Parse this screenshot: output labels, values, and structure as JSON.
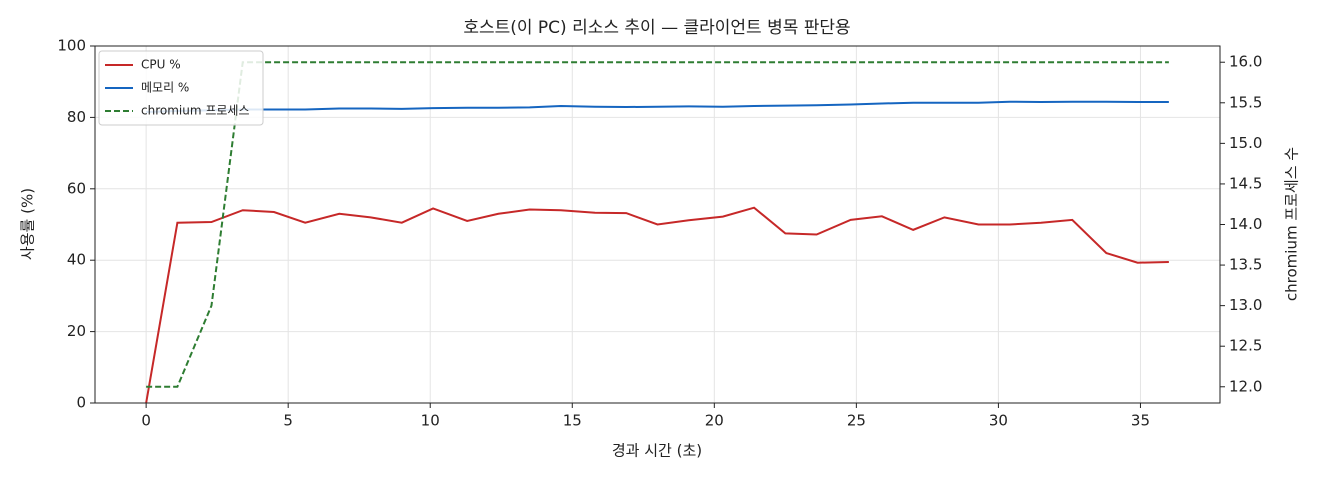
{
  "chart_data": {
    "type": "line",
    "title": "호스트(이 PC) 리소스 추이 — 클라이언트 병목 판단용",
    "x_label": "경과 시간 (초)",
    "y_label": "사용률 (%)",
    "y2_label": "chromium 프로세스 수",
    "x": [
      0,
      1.1,
      2.3,
      3.4,
      4.5,
      5.6,
      6.8,
      7.9,
      9.0,
      10.1,
      11.3,
      12.4,
      13.5,
      14.6,
      15.8,
      16.9,
      18.0,
      19.1,
      20.3,
      21.4,
      22.5,
      23.6,
      24.8,
      25.9,
      27.0,
      28.1,
      29.3,
      30.4,
      31.5,
      32.6,
      33.8,
      34.9,
      36.0
    ],
    "series": [
      {
        "name": "CPU %",
        "color": "#c62828",
        "style": "solid",
        "values": [
          0,
          50.5,
          50.7,
          54,
          53.5,
          50.5,
          53,
          52,
          50.5,
          54.5,
          51,
          53,
          54.2,
          54,
          53.3,
          53.2,
          50,
          51.2,
          52.2,
          54.7,
          47.5,
          47.2,
          51.3,
          52.3,
          48.5,
          52,
          50,
          50,
          50.5,
          51.3,
          42,
          39.3,
          39.5
        ]
      },
      {
        "name": "메모리 %",
        "color": "#1565c0",
        "style": "solid",
        "values": [
          81.5,
          81.8,
          82,
          82.2,
          82.2,
          82.2,
          82.5,
          82.5,
          82.4,
          82.6,
          82.7,
          82.7,
          82.8,
          83.2,
          83,
          82.9,
          83,
          83.1,
          83,
          83.2,
          83.3,
          83.4,
          83.6,
          83.9,
          84.1,
          84.1,
          84.1,
          84.4,
          84.3,
          84.4,
          84.4,
          84.3,
          84.3
        ]
      },
      {
        "name": "chromium 프로세스",
        "color": "#2e7d32",
        "style": "dashed",
        "axis": "y2",
        "values": [
          12,
          12,
          13,
          16,
          16,
          16,
          16,
          16,
          16,
          16,
          16,
          16,
          16,
          16,
          16,
          16,
          16,
          16,
          16,
          16,
          16,
          16,
          16,
          16,
          16,
          16,
          16,
          16,
          16,
          16,
          16,
          16,
          16
        ]
      }
    ],
    "xlim": [
      -1.8,
      37.8
    ],
    "xticks": [
      0,
      5,
      10,
      15,
      20,
      25,
      30,
      35
    ],
    "ylim": [
      0,
      100
    ],
    "yticks": [
      0,
      20,
      40,
      60,
      80,
      100
    ],
    "y2lim": [
      11.8,
      16.2
    ],
    "y2ticks": [
      {
        "value": 12,
        "label": "12.0"
      },
      {
        "value": 12.5,
        "label": "12.5"
      },
      {
        "value": 13,
        "label": "13.0"
      },
      {
        "value": 13.5,
        "label": "13.5"
      },
      {
        "value": 14,
        "label": "14.0"
      },
      {
        "value": 14.5,
        "label": "14.5"
      },
      {
        "value": 15,
        "label": "15.0"
      },
      {
        "value": 15.5,
        "label": "15.5"
      },
      {
        "value": 16,
        "label": "16.0"
      }
    ],
    "grid": true,
    "legend": "upper-left"
  }
}
